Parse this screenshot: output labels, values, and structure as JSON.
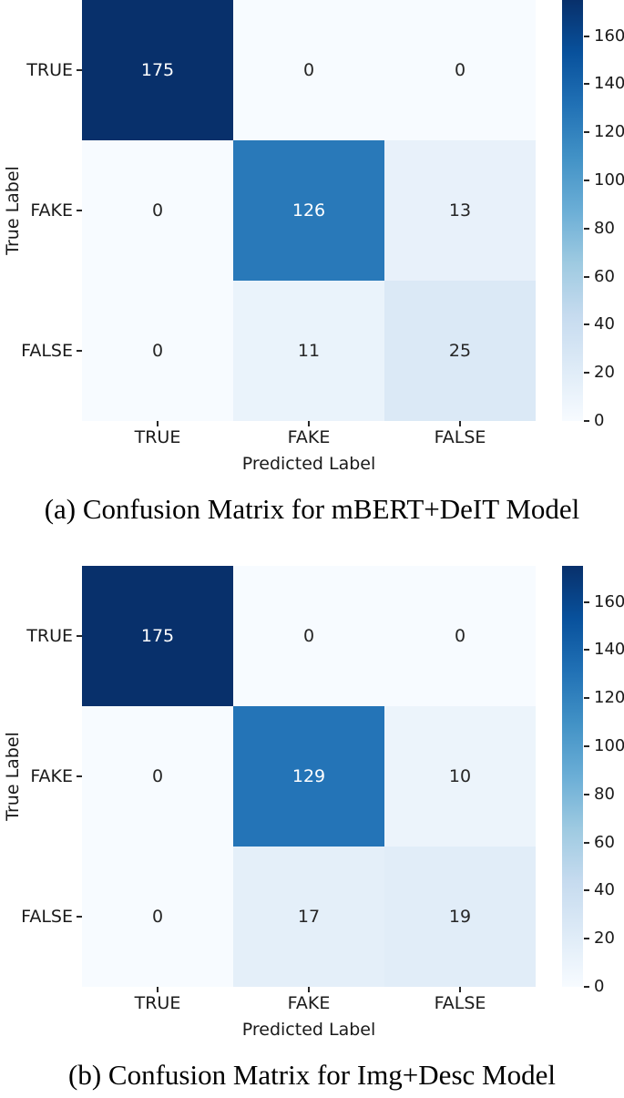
{
  "colors": {
    "background": "#ffffff",
    "colormap": "Blues",
    "colormap_stops": [
      [
        0.0,
        "#f7fbff"
      ],
      [
        0.125,
        "#deebf7"
      ],
      [
        0.25,
        "#c6dbef"
      ],
      [
        0.375,
        "#9ecae1"
      ],
      [
        0.5,
        "#6baed6"
      ],
      [
        0.625,
        "#4292c6"
      ],
      [
        0.75,
        "#2171b5"
      ],
      [
        0.875,
        "#08519c"
      ],
      [
        1.0,
        "#08306b"
      ]
    ],
    "annotation_light": "#ffffff",
    "annotation_dark": "#262626",
    "axis_text": "#1a1a1a",
    "tick_mark": "#262626",
    "caption_text": "#000000"
  },
  "chart_data": [
    {
      "type": "heatmap",
      "caption": "(a) Confusion Matrix for mBERT+DeIT Model",
      "xlabel": "Predicted Label",
      "ylabel": "True Label",
      "x_categories": [
        "TRUE",
        "FAKE",
        "FALSE"
      ],
      "y_categories": [
        "TRUE",
        "FAKE",
        "FALSE"
      ],
      "values": [
        [
          175,
          0,
          0
        ],
        [
          0,
          126,
          13
        ],
        [
          0,
          11,
          25
        ]
      ],
      "vmin": 0,
      "vmax": 175,
      "colorbar_ticks": [
        160,
        140,
        120,
        100,
        80,
        60,
        40,
        20,
        0
      ],
      "colorbar_position": "right",
      "grid": false
    },
    {
      "type": "heatmap",
      "caption": "(b) Confusion Matrix for Img+Desc Model",
      "xlabel": "Predicted Label",
      "ylabel": "True Label",
      "x_categories": [
        "TRUE",
        "FAKE",
        "FALSE"
      ],
      "y_categories": [
        "TRUE",
        "FAKE",
        "FALSE"
      ],
      "values": [
        [
          175,
          0,
          0
        ],
        [
          0,
          129,
          10
        ],
        [
          0,
          17,
          19
        ]
      ],
      "vmin": 0,
      "vmax": 175,
      "colorbar_ticks": [
        160,
        140,
        120,
        100,
        80,
        60,
        40,
        20,
        0
      ],
      "colorbar_position": "right",
      "grid": false
    }
  ]
}
